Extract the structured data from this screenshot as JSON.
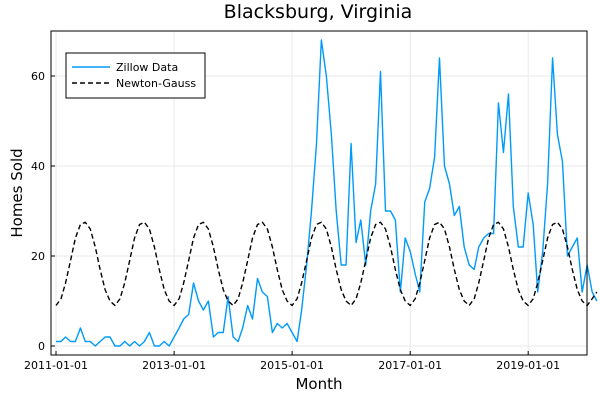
{
  "chart_data": {
    "type": "line",
    "title": "Blacksburg, Virginia",
    "xlabel": "Month",
    "ylabel": "Homes Sold",
    "x_range": [
      "2010-12-01",
      "2019-12-31"
    ],
    "ylim": [
      -2,
      70
    ],
    "x_ticks": [
      "2011-01-01",
      "2013-01-01",
      "2015-01-01",
      "2017-01-01",
      "2019-01-01"
    ],
    "y_ticks": [
      0,
      20,
      40,
      60
    ],
    "grid": true,
    "legend_position": "top-left",
    "colors": {
      "zillow": "#009af9",
      "newton": "#000000"
    },
    "start_month": "2011-01",
    "series": [
      {
        "name": "Zillow Data",
        "style": "solid",
        "values": [
          1,
          1,
          2,
          1,
          1,
          4,
          1,
          1,
          0,
          1,
          2,
          2,
          0,
          0,
          1,
          0,
          1,
          0,
          1,
          3,
          0,
          0,
          1,
          0,
          2,
          4,
          6,
          7,
          14,
          10,
          8,
          10,
          2,
          3,
          3,
          11,
          2,
          1,
          4,
          9,
          6,
          15,
          12,
          11,
          3,
          5,
          4,
          5,
          3,
          1,
          8,
          18,
          30,
          45,
          68,
          60,
          47,
          30,
          18,
          18,
          45,
          23,
          28,
          18,
          30,
          36,
          61,
          30,
          30,
          28,
          12,
          24,
          21,
          16,
          12,
          32,
          35,
          42,
          64,
          40,
          36,
          29,
          31,
          22,
          18,
          17,
          22,
          24,
          25,
          25,
          54,
          43,
          56,
          31,
          22,
          22,
          34,
          27,
          12,
          21,
          36,
          64,
          47,
          41,
          20,
          22,
          24,
          12,
          18,
          12,
          10
        ]
      },
      {
        "name": "Newton-Gauss",
        "style": "dashed",
        "values": [
          9,
          10.5,
          14,
          19,
          24,
          27,
          27.5,
          26,
          22,
          17,
          12.5,
          10,
          9,
          10.5,
          14,
          19,
          24,
          27,
          27.5,
          26,
          22,
          17,
          12.5,
          10,
          9,
          10.5,
          14,
          19,
          24,
          27,
          27.5,
          26,
          22,
          17,
          12.5,
          10,
          9,
          10.5,
          14,
          19,
          24,
          27,
          27.5,
          26,
          22,
          17,
          12.5,
          10,
          9,
          10.5,
          14,
          19,
          24,
          27,
          27.5,
          26,
          22,
          17,
          12.5,
          10,
          9,
          10.5,
          14,
          19,
          24,
          27,
          27.5,
          26,
          22,
          17,
          12.5,
          10,
          9,
          10.5,
          14,
          19,
          24,
          27,
          27.5,
          26,
          22,
          17,
          12.5,
          10,
          9,
          10.5,
          14,
          19,
          24,
          27,
          27.5,
          26,
          22,
          17,
          12.5,
          10,
          9,
          10.5,
          14,
          19,
          24,
          27,
          27.5,
          26,
          22,
          17,
          12.5,
          10,
          9,
          10.5,
          12
        ]
      }
    ]
  }
}
